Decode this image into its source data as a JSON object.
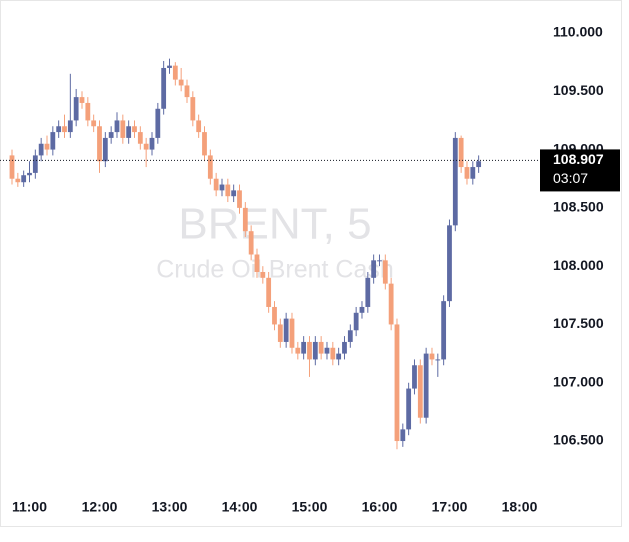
{
  "chart_data": {
    "type": "candlestick",
    "title": "BRENT, 5",
    "subtitle": "Crude Oil Brent Cash",
    "categories": [
      null,
      null,
      null,
      "11:00",
      null,
      null,
      null,
      null,
      null,
      null,
      null,
      null,
      null,
      null,
      null,
      "12:00",
      null,
      null,
      null,
      null,
      null,
      null,
      null,
      null,
      null,
      null,
      null,
      "13:00",
      null,
      null,
      null,
      null,
      null,
      null,
      null,
      null,
      null,
      null,
      null,
      "14:00",
      null,
      null,
      null,
      null,
      null,
      null,
      null,
      null,
      null,
      null,
      null,
      "15:00",
      null,
      null,
      null,
      null,
      null,
      null,
      null,
      null,
      null,
      null,
      null,
      "16:00",
      null,
      null,
      null,
      null,
      null,
      null,
      null,
      null,
      null,
      null,
      null,
      "17:00",
      null,
      null,
      null,
      null,
      null,
      null,
      null,
      null,
      null,
      null,
      null,
      "18:00"
    ],
    "open": [
      108.95,
      108.75,
      108.72,
      108.78,
      108.8,
      108.95,
      109.05,
      109.0,
      109.15,
      109.2,
      109.15,
      109.25,
      109.45,
      109.4,
      109.25,
      109.2,
      108.9,
      109.1,
      109.15,
      109.25,
      109.1,
      109.2,
      109.15,
      109.05,
      109.0,
      109.1,
      109.35,
      109.7,
      109.72,
      109.6,
      109.55,
      109.45,
      109.25,
      109.15,
      108.95,
      108.75,
      108.65,
      108.7,
      108.6,
      108.65,
      108.5,
      108.3,
      108.1,
      107.95,
      107.9,
      107.65,
      107.5,
      107.35,
      107.55,
      107.3,
      107.25,
      107.35,
      107.2,
      107.35,
      107.25,
      107.3,
      107.2,
      107.25,
      107.35,
      107.45,
      107.6,
      107.65,
      107.9,
      108.05,
      108.05,
      107.85,
      107.5,
      106.5,
      106.6,
      106.95,
      107.15,
      106.7,
      107.25,
      107.2,
      107.2,
      107.7,
      108.35,
      109.1,
      108.85,
      108.75,
      108.85,
      null,
      null,
      null,
      null,
      null,
      null,
      null
    ],
    "high": [
      109.0,
      108.8,
      108.82,
      108.9,
      109.0,
      109.1,
      109.12,
      109.2,
      109.25,
      109.3,
      109.65,
      109.52,
      109.5,
      109.45,
      109.3,
      109.25,
      109.15,
      109.2,
      109.32,
      109.3,
      109.25,
      109.25,
      109.2,
      109.1,
      109.15,
      109.4,
      109.76,
      109.78,
      109.75,
      109.7,
      109.6,
      109.5,
      109.3,
      109.2,
      109.0,
      108.8,
      108.75,
      108.75,
      108.7,
      108.7,
      108.55,
      108.35,
      108.15,
      108.0,
      107.95,
      107.7,
      107.55,
      107.6,
      107.6,
      107.35,
      107.4,
      107.4,
      107.4,
      107.4,
      107.35,
      107.35,
      107.3,
      107.4,
      107.5,
      107.65,
      107.7,
      107.95,
      108.1,
      108.1,
      108.1,
      107.9,
      107.55,
      106.65,
      107.0,
      107.2,
      107.2,
      107.3,
      107.3,
      107.25,
      107.75,
      108.4,
      109.15,
      109.12,
      108.9,
      108.9,
      108.95,
      null,
      null,
      null,
      null,
      null,
      null,
      null
    ],
    "low": [
      108.7,
      108.68,
      108.68,
      108.72,
      108.75,
      108.9,
      108.95,
      108.95,
      109.1,
      109.1,
      109.1,
      109.2,
      109.35,
      109.2,
      109.15,
      108.8,
      108.85,
      109.05,
      109.1,
      109.05,
      109.05,
      109.1,
      109.0,
      108.85,
      108.95,
      109.05,
      109.3,
      109.65,
      109.55,
      109.5,
      109.4,
      109.2,
      109.1,
      108.9,
      108.7,
      108.6,
      108.6,
      108.55,
      108.55,
      108.45,
      108.25,
      108.05,
      107.9,
      107.85,
      107.6,
      107.45,
      107.3,
      107.3,
      107.25,
      107.2,
      107.2,
      107.05,
      107.15,
      107.2,
      107.2,
      107.15,
      107.15,
      107.2,
      107.3,
      107.4,
      107.55,
      107.6,
      107.85,
      108.0,
      107.8,
      107.45,
      106.43,
      106.45,
      106.55,
      106.9,
      106.65,
      106.65,
      107.15,
      107.05,
      107.15,
      107.65,
      108.3,
      108.8,
      108.7,
      108.7,
      108.8,
      null,
      null,
      null,
      null,
      null,
      null,
      null
    ],
    "close": [
      108.75,
      108.72,
      108.78,
      108.8,
      108.95,
      109.05,
      109.0,
      109.15,
      109.2,
      109.15,
      109.25,
      109.45,
      109.4,
      109.25,
      109.2,
      108.9,
      109.1,
      109.15,
      109.25,
      109.1,
      109.2,
      109.15,
      109.05,
      109.0,
      109.1,
      109.35,
      109.7,
      109.72,
      109.6,
      109.55,
      109.45,
      109.25,
      109.15,
      108.95,
      108.75,
      108.65,
      108.7,
      108.6,
      108.65,
      108.5,
      108.3,
      108.1,
      107.95,
      107.9,
      107.65,
      107.5,
      107.35,
      107.55,
      107.3,
      107.25,
      107.35,
      107.2,
      107.35,
      107.25,
      107.3,
      107.2,
      107.25,
      107.35,
      107.45,
      107.6,
      107.65,
      107.9,
      108.05,
      108.05,
      107.85,
      107.5,
      106.5,
      106.6,
      106.95,
      107.15,
      106.7,
      107.25,
      107.2,
      107.2,
      107.7,
      108.35,
      109.1,
      108.85,
      108.75,
      108.85,
      108.9,
      null,
      null,
      null,
      null,
      null,
      null,
      null
    ],
    "up_color": "#5d6aa3",
    "down_color": "#f4a07a",
    "ylim": [
      106.08,
      110.283
    ],
    "yticks": [
      {
        "value": 106.5,
        "label": "106.500"
      },
      {
        "value": 107,
        "label": "107.000"
      },
      {
        "value": 107.5,
        "label": "107.500"
      },
      {
        "value": 108,
        "label": "108.000"
      },
      {
        "value": 108.5,
        "label": "108.500"
      },
      {
        "value": 109,
        "label": "109.000"
      },
      {
        "value": 109.5,
        "label": "109.500"
      },
      {
        "value": 110,
        "label": "110.000"
      }
    ],
    "last_price": 108.907,
    "countdown": "03:07"
  }
}
